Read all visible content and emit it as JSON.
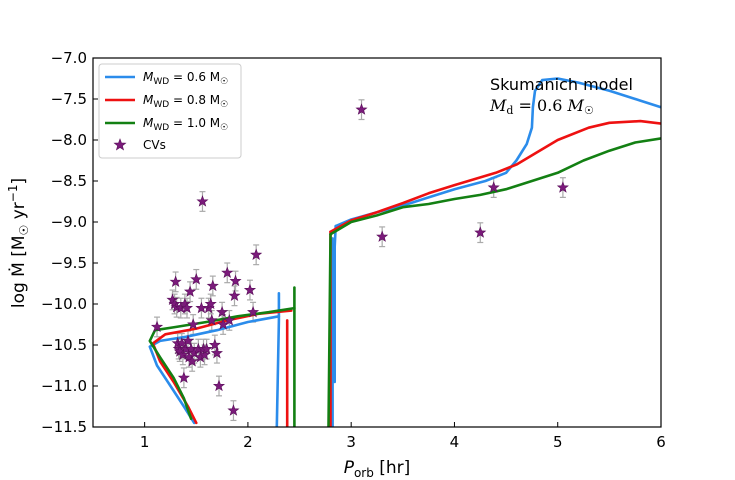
{
  "chart_data": {
    "type": "line",
    "title": "",
    "xlabel": "P_orb [hr]",
    "ylabel": "log Ṁ [M☉ yr⁻¹]",
    "xlim": [
      0.5,
      6
    ],
    "ylim": [
      -11.5,
      -7.0
    ],
    "xticks": [
      1,
      2,
      3,
      4,
      5,
      6
    ],
    "yticks": [
      -11.5,
      -11.0,
      -10.5,
      -10.0,
      -9.5,
      -9.0,
      -8.5,
      -8.0,
      -7.5,
      -7.0
    ],
    "xtick_labels": [
      "1",
      "2",
      "3",
      "4",
      "5",
      "6"
    ],
    "ytick_labels": [
      "−11.5",
      "−11.0",
      "−10.5",
      "−10.0",
      "−9.5",
      "−9.0",
      "−8.5",
      "−8.0",
      "−7.5",
      "−7.0"
    ],
    "annotation": {
      "line1": "Skumanich model",
      "line2": "Md = 0.6 M☉"
    },
    "legend": {
      "placement": "top-left",
      "entries": [
        {
          "label": "MWD = 0.6 M☉",
          "color": "#2b8ceb",
          "kind": "line"
        },
        {
          "label": "MWD = 0.8 M☉",
          "color": "#ee1111",
          "kind": "line"
        },
        {
          "label": "MWD = 1.0 M☉",
          "color": "#138013",
          "kind": "line"
        },
        {
          "label": "CVs",
          "color": "#7b1a7b",
          "kind": "star"
        }
      ]
    },
    "series": [
      {
        "color": "#2b8ceb",
        "segments": [
          [
            [
              6.0,
              -7.6
            ],
            [
              5.8,
              -7.52
            ],
            [
              5.5,
              -7.4
            ],
            [
              5.2,
              -7.3
            ],
            [
              5.0,
              -7.25
            ],
            [
              4.85,
              -7.27
            ],
            [
              4.78,
              -7.4
            ],
            [
              4.76,
              -7.6
            ],
            [
              4.75,
              -7.85
            ],
            [
              4.7,
              -8.05
            ],
            [
              4.6,
              -8.25
            ],
            [
              4.5,
              -8.4
            ],
            [
              4.3,
              -8.5
            ],
            [
              4.0,
              -8.6
            ],
            [
              3.75,
              -8.7
            ],
            [
              3.5,
              -8.8
            ],
            [
              3.25,
              -8.88
            ],
            [
              3.0,
              -8.97
            ],
            [
              2.85,
              -9.05
            ]
          ],
          [
            [
              2.85,
              -9.05
            ],
            [
              2.84,
              -9.3
            ],
            [
              2.84,
              -9.8
            ],
            [
              2.84,
              -10.4
            ],
            [
              2.84,
              -10.95
            ]
          ],
          [
            [
              2.82,
              -11.5
            ],
            [
              2.82,
              -9.2
            ]
          ],
          [
            [
              2.3,
              -9.87
            ],
            [
              2.3,
              -10.2
            ],
            [
              2.28,
              -11.5
            ]
          ],
          [
            [
              2.3,
              -10.15
            ],
            [
              2.0,
              -10.22
            ],
            [
              1.7,
              -10.32
            ],
            [
              1.4,
              -10.4
            ],
            [
              1.15,
              -10.45
            ],
            [
              1.05,
              -10.52
            ],
            [
              1.12,
              -10.75
            ],
            [
              1.25,
              -11.0
            ],
            [
              1.38,
              -11.25
            ],
            [
              1.48,
              -11.45
            ]
          ]
        ]
      },
      {
        "color": "#ee1111",
        "segments": [
          [
            [
              6.0,
              -7.8
            ],
            [
              5.8,
              -7.77
            ],
            [
              5.5,
              -7.79
            ],
            [
              5.3,
              -7.85
            ],
            [
              5.0,
              -8.0
            ],
            [
              4.8,
              -8.15
            ],
            [
              4.6,
              -8.3
            ],
            [
              4.4,
              -8.4
            ],
            [
              4.0,
              -8.55
            ],
            [
              3.75,
              -8.65
            ],
            [
              3.5,
              -8.77
            ],
            [
              3.25,
              -8.88
            ],
            [
              3.0,
              -8.98
            ],
            [
              2.8,
              -9.12
            ]
          ],
          [
            [
              2.8,
              -9.12
            ],
            [
              2.8,
              -11.5
            ]
          ],
          [
            [
              2.38,
              -10.2
            ],
            [
              2.38,
              -11.5
            ]
          ],
          [
            [
              2.42,
              -10.08
            ],
            [
              2.1,
              -10.12
            ],
            [
              1.8,
              -10.2
            ],
            [
              1.5,
              -10.3
            ],
            [
              1.2,
              -10.37
            ],
            [
              1.08,
              -10.48
            ],
            [
              1.15,
              -10.7
            ],
            [
              1.28,
              -10.95
            ],
            [
              1.42,
              -11.25
            ],
            [
              1.5,
              -11.45
            ]
          ]
        ]
      },
      {
        "color": "#138013",
        "segments": [
          [
            [
              6.0,
              -7.98
            ],
            [
              5.75,
              -8.03
            ],
            [
              5.5,
              -8.13
            ],
            [
              5.25,
              -8.25
            ],
            [
              5.0,
              -8.4
            ],
            [
              4.75,
              -8.5
            ],
            [
              4.5,
              -8.6
            ],
            [
              4.25,
              -8.67
            ],
            [
              4.0,
              -8.72
            ],
            [
              3.75,
              -8.78
            ],
            [
              3.5,
              -8.82
            ],
            [
              3.25,
              -8.92
            ],
            [
              3.0,
              -9.0
            ],
            [
              2.8,
              -9.15
            ]
          ],
          [
            [
              2.8,
              -9.15
            ],
            [
              2.78,
              -11.5
            ]
          ],
          [
            [
              2.45,
              -9.8
            ],
            [
              2.45,
              -10.5
            ],
            [
              2.45,
              -11.5
            ]
          ],
          [
            [
              2.45,
              -10.05
            ],
            [
              2.2,
              -10.1
            ],
            [
              1.9,
              -10.15
            ],
            [
              1.6,
              -10.22
            ],
            [
              1.3,
              -10.28
            ],
            [
              1.1,
              -10.32
            ],
            [
              1.05,
              -10.45
            ],
            [
              1.15,
              -10.65
            ],
            [
              1.28,
              -10.9
            ],
            [
              1.38,
              -11.15
            ],
            [
              1.45,
              -11.4
            ]
          ]
        ]
      }
    ],
    "cvs": {
      "color": "#7b1a7b",
      "points": [
        [
          1.12,
          -10.28
        ],
        [
          1.27,
          -9.95
        ],
        [
          1.29,
          -10.0
        ],
        [
          1.3,
          -9.73
        ],
        [
          1.31,
          -10.04
        ],
        [
          1.32,
          -10.48
        ],
        [
          1.33,
          -10.55
        ],
        [
          1.34,
          -10.58
        ],
        [
          1.35,
          -10.05
        ],
        [
          1.36,
          -10.48
        ],
        [
          1.37,
          -10.62
        ],
        [
          1.38,
          -10.9
        ],
        [
          1.39,
          -10.0
        ],
        [
          1.4,
          -10.55
        ],
        [
          1.41,
          -10.05
        ],
        [
          1.42,
          -10.45
        ],
        [
          1.43,
          -10.65
        ],
        [
          1.44,
          -9.85
        ],
        [
          1.45,
          -10.55
        ],
        [
          1.46,
          -10.7
        ],
        [
          1.47,
          -10.25
        ],
        [
          1.48,
          -10.6
        ],
        [
          1.5,
          -9.7
        ],
        [
          1.52,
          -10.55
        ],
        [
          1.54,
          -10.65
        ],
        [
          1.55,
          -10.05
        ],
        [
          1.56,
          -8.75
        ],
        [
          1.57,
          -10.55
        ],
        [
          1.58,
          -10.62
        ],
        [
          1.6,
          -10.55
        ],
        [
          1.62,
          -10.05
        ],
        [
          1.64,
          -10.0
        ],
        [
          1.65,
          -10.2
        ],
        [
          1.66,
          -9.78
        ],
        [
          1.68,
          -10.5
        ],
        [
          1.7,
          -10.6
        ],
        [
          1.72,
          -11.0
        ],
        [
          1.75,
          -10.1
        ],
        [
          1.76,
          -10.25
        ],
        [
          1.8,
          -9.62
        ],
        [
          1.82,
          -10.2
        ],
        [
          1.86,
          -11.3
        ],
        [
          1.87,
          -9.9
        ],
        [
          1.88,
          -9.72
        ],
        [
          2.02,
          -9.83
        ],
        [
          2.05,
          -10.1
        ],
        [
          2.08,
          -9.4
        ],
        [
          3.1,
          -7.63
        ],
        [
          3.3,
          -9.18
        ],
        [
          4.25,
          -9.13
        ],
        [
          4.38,
          -8.58
        ],
        [
          5.05,
          -8.58
        ]
      ]
    }
  }
}
